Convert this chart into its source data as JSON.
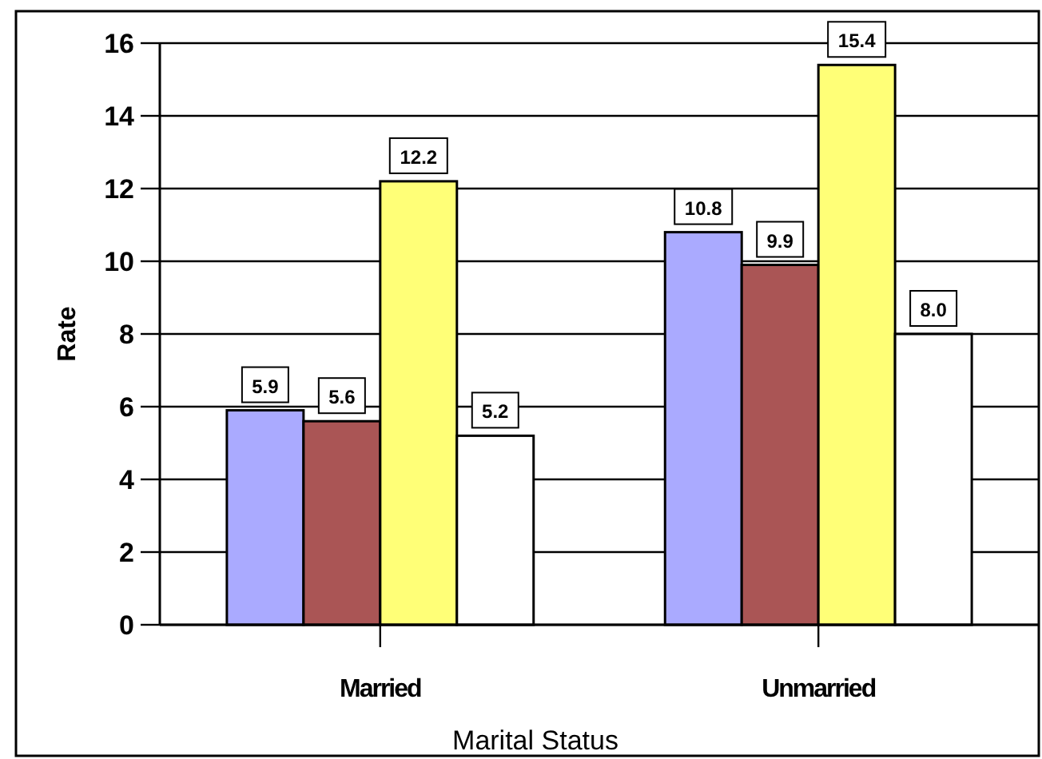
{
  "chart_data": {
    "type": "bar",
    "xlabel": "Marital Status",
    "ylabel": "Rate",
    "categories": [
      "Married",
      "Unmarried"
    ],
    "series": [
      {
        "color": "#aaaaff",
        "values": [
          5.9,
          10.8
        ],
        "value_labels": [
          "5.9",
          "10.8"
        ]
      },
      {
        "color": "#aa5555",
        "values": [
          5.6,
          9.9
        ],
        "value_labels": [
          "5.6",
          "9.9"
        ]
      },
      {
        "color": "#ffff77",
        "values": [
          12.2,
          15.4
        ],
        "value_labels": [
          "12.2",
          "15.4"
        ]
      },
      {
        "color": "#ffffff",
        "values": [
          5.2,
          8.0
        ],
        "value_labels": [
          "5.2",
          "8.0"
        ]
      }
    ],
    "ylim": [
      0,
      16
    ],
    "yticks": [
      0,
      2,
      4,
      6,
      8,
      10,
      12,
      14,
      16
    ],
    "grid": "y"
  }
}
